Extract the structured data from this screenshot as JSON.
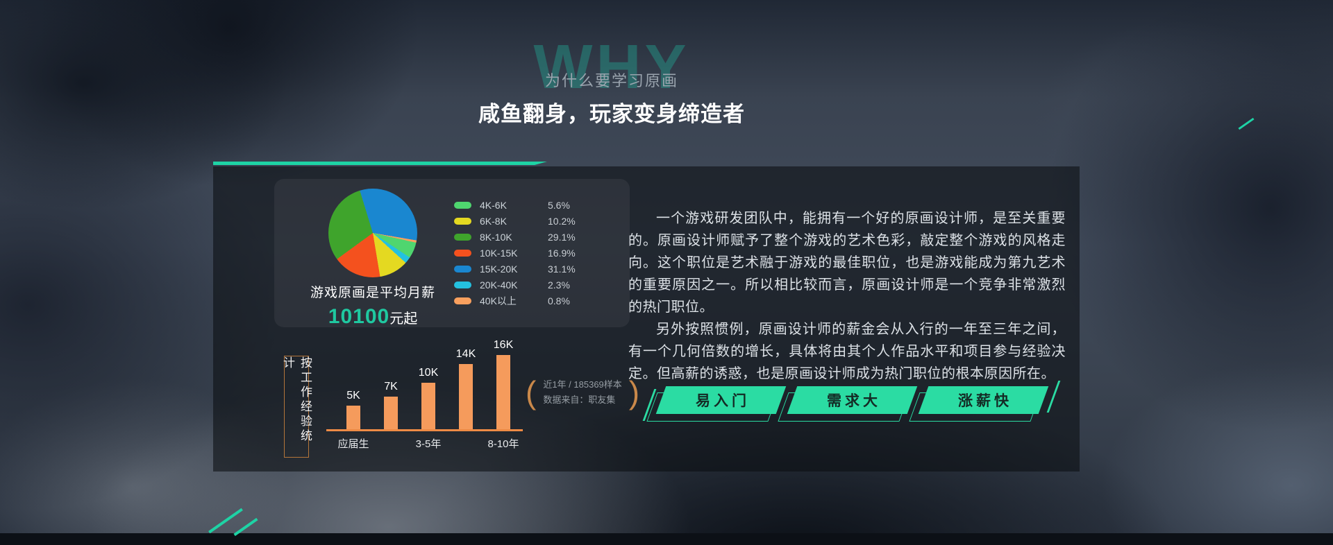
{
  "header": {
    "watermark": "WHY",
    "subtitle": "为什么要学习原画",
    "title": "咸鱼翻身，玩家变身缔造者"
  },
  "salary_card": {
    "avg_label": "游戏原画是平均月薪",
    "avg_value": "10100",
    "avg_unit": "元起"
  },
  "chart_data": [
    {
      "type": "pie",
      "title": "游戏原画月薪分布",
      "labels": [
        "4K-6K",
        "6K-8K",
        "8K-10K",
        "10K-15K",
        "15K-20K",
        "20K-40K",
        "40K以上"
      ],
      "values_percent": [
        5.6,
        10.2,
        29.1,
        16.9,
        31.1,
        2.3,
        0.8
      ],
      "colors": [
        "#4fd66f",
        "#e4d921",
        "#3fa42c",
        "#f4511e",
        "#1a87d0",
        "#24c1e0",
        "#f9a05e"
      ],
      "legend_position": "right",
      "start_angle_deg": -17,
      "draw_order": [
        4,
        6,
        0,
        5,
        1,
        3,
        2
      ]
    },
    {
      "type": "bar",
      "group_label": "按工作经验统计",
      "values_k": [
        5,
        7,
        10,
        14,
        16
      ],
      "bar_value_labels": [
        "5K",
        "7K",
        "10K",
        "14K",
        "16K"
      ],
      "x_tick_labels": [
        "应届生",
        "3-5年",
        "8-10年"
      ],
      "x_tick_positions": [
        0,
        2,
        4
      ],
      "bar_color": "#f59b5c",
      "axis_color": "#ee8b45",
      "note_paren_open": "(",
      "note_paren_close": ")",
      "note": [
        "近1年 / 185369样本",
        "数据来自：职友集"
      ]
    }
  ],
  "article": {
    "paragraphs": [
      "一个游戏研发团队中，能拥有一个好的原画设计师，是至关重要的。原画设计师赋予了整个游戏的艺术色彩，敲定整个游戏的风格走向。这个职位是艺术融于游戏的最佳职位，也是游戏能成为第九艺术的重要原因之一。所以相比较而言，原画设计师是一个竞争非常激烈的热门职位。",
      "另外按照惯例，原画设计师的薪金会从入行的一年至三年之间，有一个几何倍数的增长，具体将由其个人作品水平和项目参与经验决定。但高薪的诱惑，也是原画设计师成为热门职位的根本原因所在。"
    ]
  },
  "tags": [
    {
      "label": "易入门"
    },
    {
      "label": "需求大"
    },
    {
      "label": "涨薪快"
    }
  ],
  "colors": {
    "accent_teal": "#1ed3a5",
    "tag_green": "#2bdca3",
    "bar_orange": "#f59b5c",
    "axis_orange": "#ee8b45",
    "salary_value_teal": "#1fc8a0",
    "exp_box_border": "#b5763a",
    "note_paren": "#c9884a",
    "watermark_teal": "#22a693"
  }
}
